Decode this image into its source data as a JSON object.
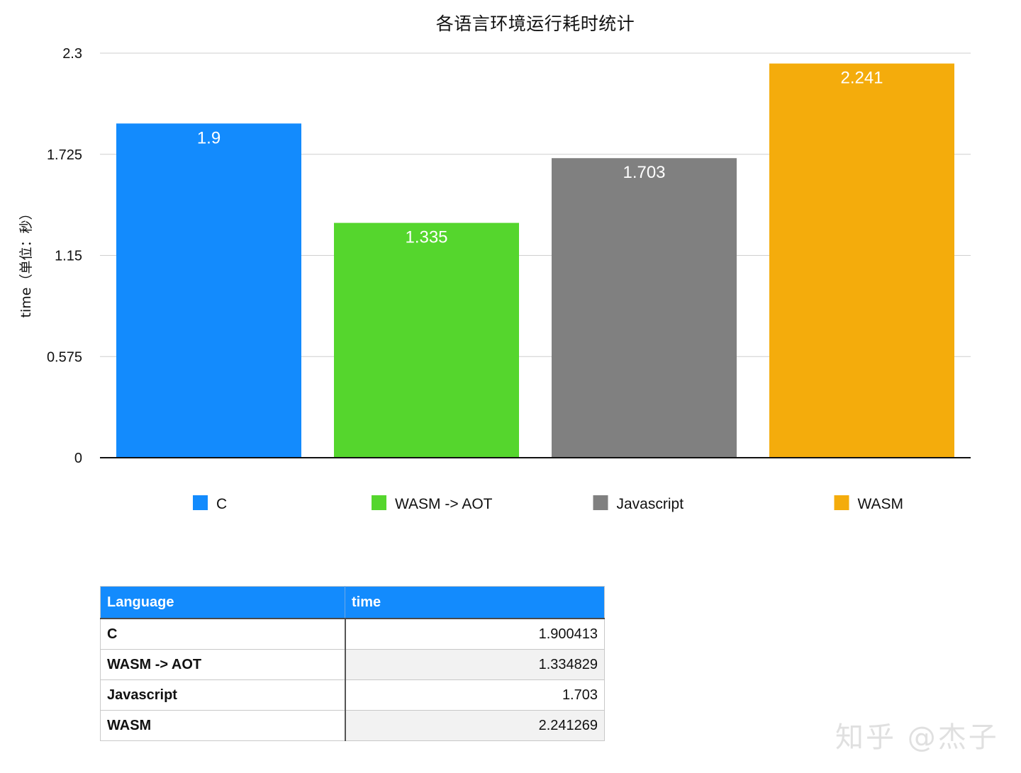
{
  "chart_data": {
    "type": "bar",
    "title": "各语言环境运行耗时统计",
    "ylabel": "time（单位：秒）",
    "xlabel": "",
    "ylim": [
      0,
      2.3
    ],
    "yticks": [
      "0",
      "0.575",
      "1.15",
      "1.725",
      "2.3"
    ],
    "ytick_values": [
      0,
      0.575,
      1.15,
      1.725,
      2.3
    ],
    "grid": true,
    "legend_position": "bottom",
    "categories": [
      "C",
      "WASM -> AOT",
      "Javascript",
      "WASM"
    ],
    "values": [
      1.9,
      1.335,
      1.703,
      2.241
    ],
    "data_labels": [
      "1.9",
      "1.335",
      "1.703",
      "2.241"
    ],
    "colors": [
      "#138bfd",
      "#55d62d",
      "#808080",
      "#f4ac0c"
    ]
  },
  "table": {
    "headers": [
      "Language",
      "time"
    ],
    "rows": [
      [
        "C",
        "1.900413"
      ],
      [
        "WASM -> AOT",
        "1.334829"
      ],
      [
        "Javascript",
        "1.703"
      ],
      [
        "WASM",
        "2.241269"
      ]
    ]
  },
  "watermark": "知乎 @杰子"
}
